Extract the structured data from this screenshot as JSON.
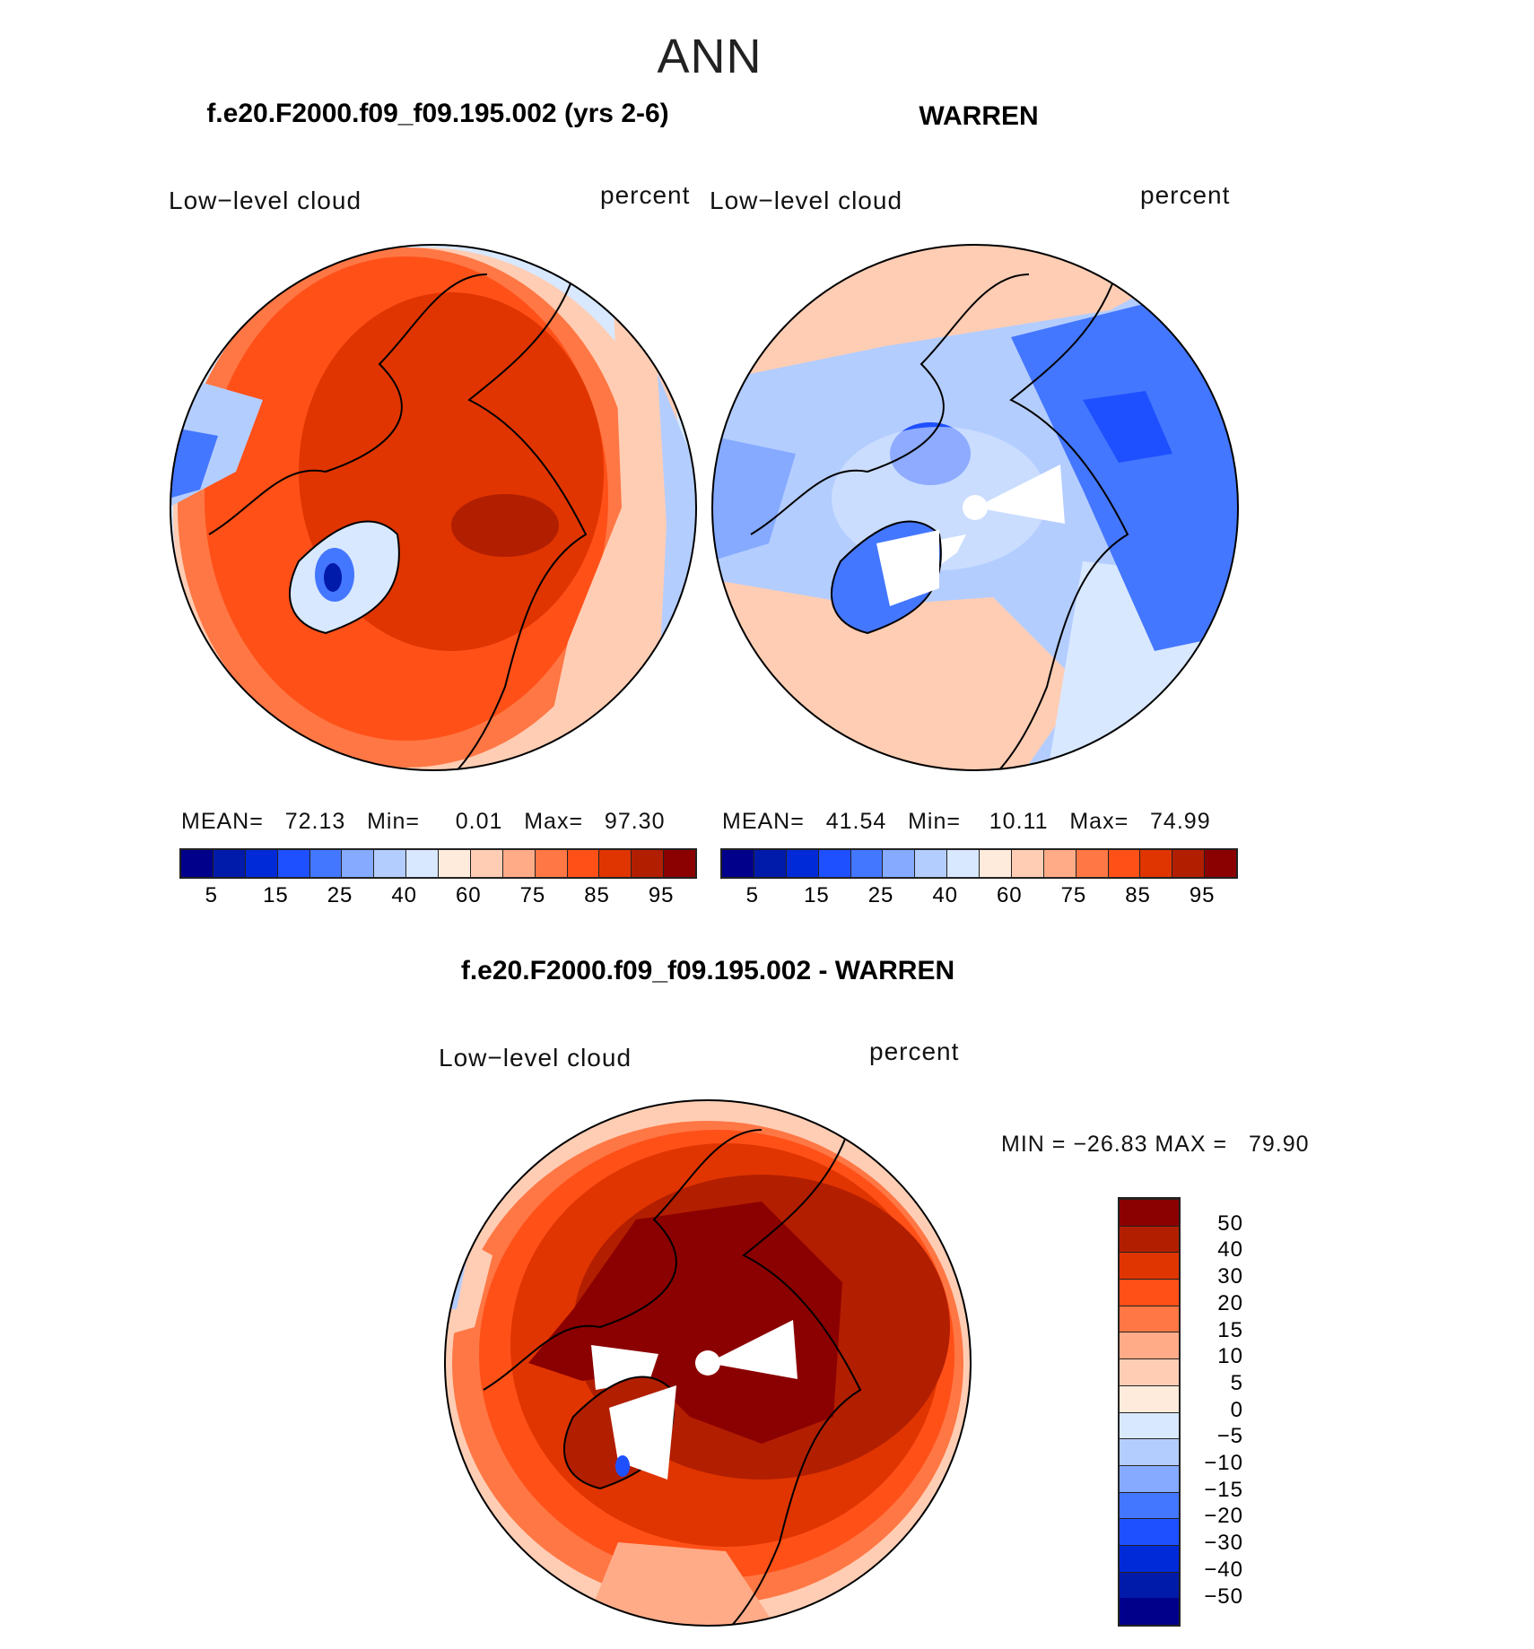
{
  "title": "ANN",
  "panels": [
    {
      "title": "f.e20.F2000.f09_f09.195.002 (yrs 2-6)",
      "variable": "Low−level cloud",
      "units": "percent",
      "stats": {
        "mean_label": "MEAN=",
        "mean": "72.13",
        "min_label": "Min=",
        "min": "0.01",
        "max_label": "Max=",
        "max": "97.30"
      }
    },
    {
      "title": "WARREN",
      "variable": "Low−level cloud",
      "units": "percent",
      "stats": {
        "mean_label": "MEAN=",
        "mean": "41.54",
        "min_label": "Min=",
        "min": "10.11",
        "max_label": "Max=",
        "max": "74.99"
      }
    },
    {
      "title": "f.e20.F2000.f09_f09.195.002 - WARREN",
      "variable": "Low−level cloud",
      "units": "percent",
      "stats": {
        "text": "MIN = −26.83 MAX =   79.90"
      }
    }
  ],
  "chart_data": [
    {
      "type": "heatmap",
      "title": "f.e20.F2000.f09_f09.195.002 (yrs 2-6)",
      "projection": "north polar stereographic",
      "colorbar": {
        "levels": [
          5,
          10,
          15,
          20,
          25,
          30,
          40,
          50,
          60,
          65,
          75,
          80,
          85,
          90,
          95
        ],
        "tick_labels": [
          "5",
          "15",
          "25",
          "40",
          "60",
          "75",
          "85",
          "95"
        ]
      },
      "mean": 72.13,
      "min": 0.01,
      "max": 97.3
    },
    {
      "type": "heatmap",
      "title": "WARREN",
      "projection": "north polar stereographic",
      "colorbar": {
        "levels": [
          5,
          10,
          15,
          20,
          25,
          30,
          40,
          50,
          60,
          65,
          75,
          80,
          85,
          90,
          95
        ],
        "tick_labels": [
          "5",
          "15",
          "25",
          "40",
          "60",
          "75",
          "85",
          "95"
        ]
      },
      "mean": 41.54,
      "min": 10.11,
      "max": 74.99
    },
    {
      "type": "heatmap",
      "title": "f.e20.F2000.f09_f09.195.002 - WARREN",
      "projection": "north polar stereographic",
      "colorbar": {
        "tick_labels": [
          "−50",
          "−40",
          "−30",
          "−20",
          "−15",
          "−10",
          "−5",
          "0",
          "5",
          "10",
          "15",
          "20",
          "30",
          "40",
          "50"
        ]
      },
      "min": -26.83,
      "max": 79.9
    }
  ],
  "colors": [
    "#00008b",
    "#001aaa",
    "#002ad8",
    "#1e50ff",
    "#4477ff",
    "#85aaff",
    "#b4cdff",
    "#d8e8ff",
    "#ffebdc",
    "#ffcdb4",
    "#ffab88",
    "#ff7744",
    "#ff5018",
    "#e03500",
    "#b21e00",
    "#8b0000"
  ]
}
